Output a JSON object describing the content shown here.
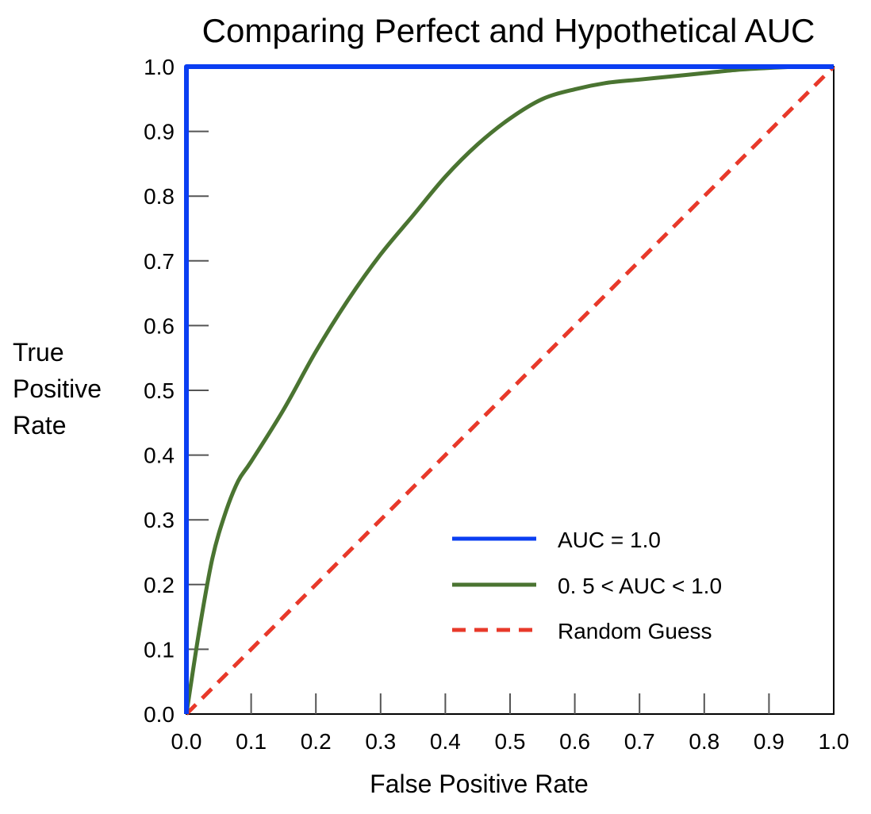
{
  "chart_data": {
    "type": "line",
    "title": "Comparing Perfect and Hypothetical AUC",
    "xlabel": "False Positive Rate",
    "ylabel_lines": [
      "True",
      "Positive",
      "Rate"
    ],
    "xlim": [
      0.0,
      1.0
    ],
    "ylim": [
      0.0,
      1.0
    ],
    "xticks": [
      "0.0",
      "0.1",
      "0.2",
      "0.3",
      "0.4",
      "0.5",
      "0.6",
      "0.7",
      "0.8",
      "0.9",
      "1.0"
    ],
    "yticks": [
      "0.0",
      "0.1",
      "0.2",
      "0.3",
      "0.4",
      "0.5",
      "0.6",
      "0.7",
      "0.8",
      "0.9",
      "1.0"
    ],
    "grid": false,
    "legend_position": "bottom-right",
    "series": [
      {
        "name": "AUC = 1.0",
        "color": "#0a3ef2",
        "style": "solid",
        "x": [
          0.0,
          0.0,
          1.0
        ],
        "y": [
          0.0,
          1.0,
          1.0
        ]
      },
      {
        "name": "0. 5 < AUC < 1.0",
        "color": "#4a7431",
        "style": "solid",
        "x": [
          0.0,
          0.02,
          0.04,
          0.06,
          0.08,
          0.1,
          0.15,
          0.2,
          0.25,
          0.3,
          0.35,
          0.4,
          0.45,
          0.5,
          0.55,
          0.6,
          0.65,
          0.7,
          0.75,
          0.8,
          0.85,
          0.9,
          0.95,
          1.0
        ],
        "y": [
          0.0,
          0.13,
          0.24,
          0.31,
          0.36,
          0.39,
          0.47,
          0.56,
          0.64,
          0.71,
          0.77,
          0.83,
          0.88,
          0.92,
          0.95,
          0.965,
          0.975,
          0.98,
          0.985,
          0.99,
          0.995,
          0.998,
          1.0,
          1.0
        ]
      },
      {
        "name": "Random Guess",
        "color": "#e8392a",
        "style": "dashed",
        "x": [
          0.0,
          1.0
        ],
        "y": [
          0.0,
          1.0
        ]
      }
    ]
  }
}
